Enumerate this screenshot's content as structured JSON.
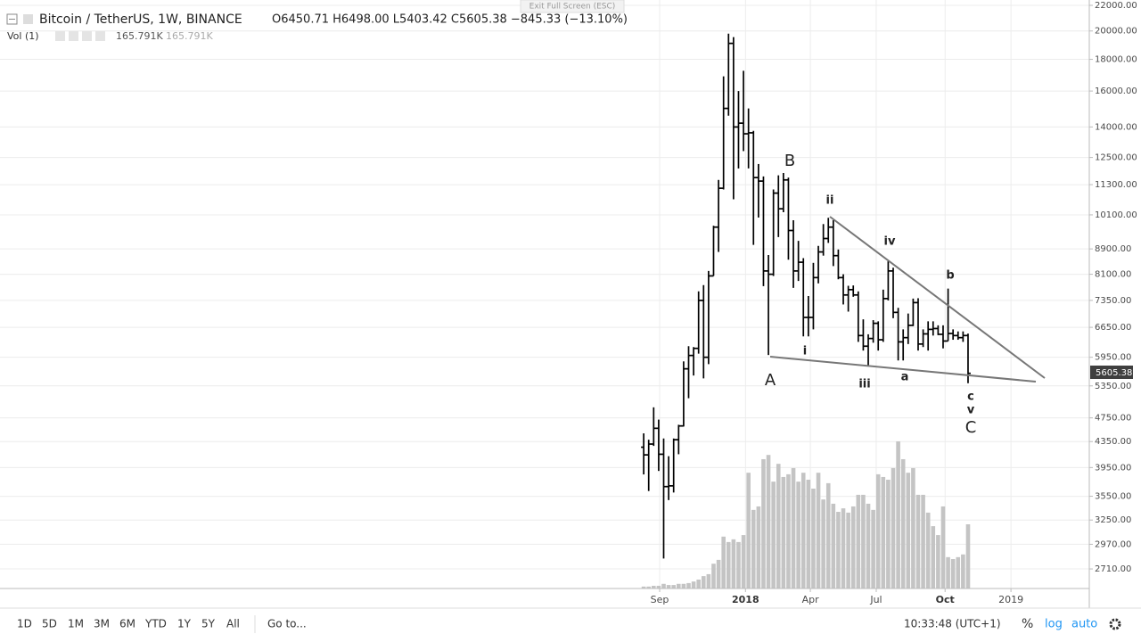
{
  "header": {
    "symbol": "Bitcoin / TetherUS, 1W, BINANCE",
    "ohlc_readout": "O6450.71  H6498.00  L5403.42  C5605.38  −845.33 (−13.10%)",
    "vol_title": "Vol (1)",
    "vol_readout": [
      "165.791K",
      "165.791K"
    ],
    "tooltip": "Exit Full Screen (ESC)",
    "last_price": "5605.38"
  },
  "toolbar": {
    "ranges": [
      "1D",
      "5D",
      "1M",
      "3M",
      "6M",
      "YTD",
      "1Y",
      "5Y",
      "All"
    ],
    "goto": "Go to...",
    "clock": "10:33:48 (UTC+1)",
    "percent": "%",
    "log": "log",
    "auto": "auto"
  },
  "chart_data": {
    "type": "ohlc",
    "log_scale": true,
    "grid": true,
    "x": [
      0,
      1,
      2,
      3,
      4,
      5,
      6,
      7,
      8,
      9,
      10,
      11,
      12,
      13,
      14,
      15,
      16,
      17,
      18,
      19,
      20,
      21,
      22,
      23,
      24,
      25,
      26,
      27,
      28,
      29,
      30,
      31,
      32,
      33,
      34,
      35,
      36,
      37,
      38,
      39,
      40,
      41,
      42,
      43,
      44,
      45,
      46,
      47,
      48,
      49,
      50,
      51,
      52,
      53,
      54,
      55,
      56,
      57,
      58,
      59,
      60,
      61,
      62,
      63,
      64,
      65
    ],
    "xlim": [
      -129,
      89.3
    ],
    "xticks": [
      {
        "value": 3.2,
        "label": "Sep"
      },
      {
        "value": 20.4,
        "label": "2018"
      },
      {
        "value": 33.4,
        "label": "Apr"
      },
      {
        "value": 46.6,
        "label": "Jul"
      },
      {
        "value": 60.4,
        "label": "Oct"
      },
      {
        "value": 73.6,
        "label": "2019"
      }
    ],
    "ylim": [
      2520,
      22440
    ],
    "yticks": [
      {
        "value": 22000,
        "label": "22000.00"
      },
      {
        "value": 20000,
        "label": "20000.00"
      },
      {
        "value": 18000,
        "label": "18000.00"
      },
      {
        "value": 16000,
        "label": "16000.00"
      },
      {
        "value": 14000,
        "label": "14000.00"
      },
      {
        "value": 12500,
        "label": "12500.00"
      },
      {
        "value": 11300,
        "label": "11300.00"
      },
      {
        "value": 10100,
        "label": "10100.00"
      },
      {
        "value": 8900,
        "label": "8900.00"
      },
      {
        "value": 8100,
        "label": "8100.00"
      },
      {
        "value": 7350,
        "label": "7350.00"
      },
      {
        "value": 6650,
        "label": "6650.00"
      },
      {
        "value": 5950,
        "label": "5950.00"
      },
      {
        "value": 5350,
        "label": "5350.00"
      },
      {
        "value": 4750,
        "label": "4750.00"
      },
      {
        "value": 4350,
        "label": "4350.00"
      },
      {
        "value": 3950,
        "label": "3950.00"
      },
      {
        "value": 3550,
        "label": "3550.00"
      },
      {
        "value": 3250,
        "label": "3250.00"
      },
      {
        "value": 2970,
        "label": "2970.00"
      },
      {
        "value": 2710,
        "label": "2710.00"
      }
    ],
    "series": [
      {
        "color": "#000000",
        "open": [
          4260,
          4140,
          4310,
          4570,
          4150,
          3680,
          3690,
          4380,
          4610,
          5700,
          5990,
          6150,
          7350,
          5950,
          8050,
          9650,
          11150,
          15000,
          19100,
          14000,
          14200,
          13650,
          13700,
          11600,
          11450,
          8200,
          8100,
          10950,
          10330,
          11500,
          9530,
          8200,
          8470,
          6900,
          6900,
          8000,
          8800,
          9250,
          9650,
          8680,
          8000,
          7500,
          7650,
          7500,
          6450,
          6200,
          6380,
          6750,
          6350,
          7400,
          8200,
          7030,
          6300,
          6400,
          6700,
          7290,
          6250,
          6490,
          6600,
          6620,
          6480,
          6320,
          6500,
          6450,
          6400,
          6450.71
        ],
        "high": [
          4485,
          4380,
          4940,
          4720,
          4400,
          4120,
          4400,
          4630,
          5860,
          6200,
          6180,
          7600,
          7780,
          8200,
          9700,
          11500,
          16900,
          19800,
          19550,
          16000,
          17250,
          15000,
          13800,
          12200,
          11650,
          8700,
          11100,
          11700,
          11800,
          11600,
          9900,
          9170,
          8600,
          7470,
          8450,
          9000,
          9760,
          9990,
          9900,
          8880,
          8100,
          7760,
          7770,
          7600,
          6850,
          6480,
          6830,
          6800,
          7650,
          8500,
          8300,
          7150,
          6600,
          7000,
          7400,
          7410,
          6600,
          6800,
          6800,
          6700,
          6700,
          7680,
          6600,
          6550,
          6550,
          6498
        ],
        "low": [
          3850,
          3620,
          4280,
          3900,
          2817,
          3500,
          3600,
          4150,
          4600,
          5110,
          5560,
          6030,
          5500,
          5800,
          8050,
          8800,
          11100,
          14600,
          10700,
          12000,
          12800,
          12000,
          9035,
          10000,
          7750,
          6000,
          8050,
          9300,
          10200,
          8550,
          7700,
          7900,
          6430,
          6430,
          6600,
          7830,
          8680,
          9100,
          8350,
          7950,
          7240,
          7050,
          7450,
          6300,
          6100,
          5750,
          6280,
          6100,
          6300,
          7350,
          6880,
          5880,
          5880,
          6250,
          6680,
          6100,
          6180,
          6100,
          6450,
          6460,
          6150,
          6320,
          6350,
          6350,
          6300,
          5403.42
        ],
        "close": [
          4140,
          4310,
          4570,
          4150,
          3680,
          3690,
          4380,
          4610,
          5700,
          5990,
          6150,
          7350,
          5950,
          8050,
          9650,
          11150,
          15000,
          19100,
          14000,
          14200,
          13650,
          13700,
          11600,
          11450,
          8200,
          8100,
          10950,
          10330,
          11500,
          9530,
          8200,
          8470,
          6900,
          6900,
          8000,
          8800,
          9250,
          9650,
          8680,
          8000,
          7500,
          7650,
          7500,
          6450,
          6200,
          6380,
          6750,
          6350,
          7400,
          8200,
          7030,
          6300,
          6400,
          6700,
          7290,
          6250,
          6490,
          6600,
          6620,
          6480,
          6320,
          6500,
          6450,
          6400,
          6450.71,
          5605.38
        ]
      }
    ],
    "volume": {
      "color": "#c4c4c4",
      "vlim": [
        0,
        1520
      ],
      "values": [
        5,
        5,
        7,
        7,
        12,
        9,
        9,
        12,
        12,
        14,
        18,
        23,
        32,
        37,
        64,
        74,
        134,
        120,
        127,
        120,
        138,
        299,
        203,
        212,
        334,
        345,
        276,
        322,
        288,
        295,
        311,
        276,
        299,
        281,
        258,
        299,
        230,
        272,
        219,
        198,
        207,
        196,
        212,
        242,
        242,
        219,
        203,
        295,
        288,
        281,
        311,
        380,
        334,
        299,
        311,
        242,
        242,
        196,
        161,
        138,
        212,
        81,
        76,
        81,
        88,
        165.791
      ]
    },
    "annotations": [
      "B",
      "ii",
      "iv",
      "b",
      "i",
      "A",
      "iii",
      "a",
      "c",
      "v",
      "C"
    ]
  }
}
